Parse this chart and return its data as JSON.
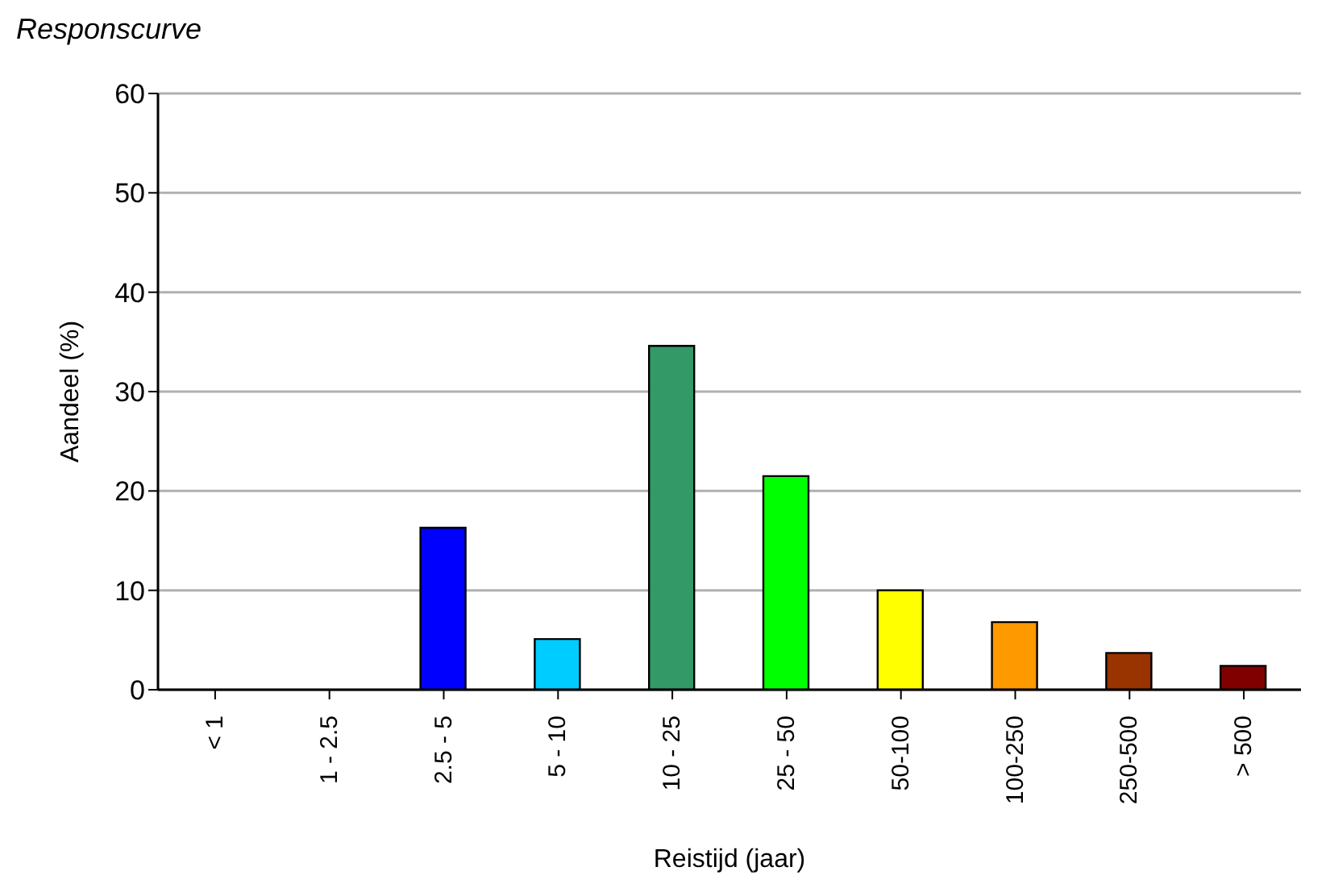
{
  "chart_data": {
    "type": "bar",
    "title": "Responscurve",
    "xlabel": "Reistijd (jaar)",
    "ylabel": "Aandeel (%)",
    "categories": [
      "< 1",
      "1 - 2.5",
      "2.5 - 5",
      "5 - 10",
      "10 - 25",
      "25 - 50",
      "50-100",
      "100-250",
      "250-500",
      "> 500"
    ],
    "values": [
      0,
      0,
      16.3,
      5.1,
      34.6,
      21.5,
      10.0,
      6.8,
      3.7,
      2.4
    ],
    "colors": [
      "#0000ff",
      "#0000ff",
      "#0000ff",
      "#00ccff",
      "#339966",
      "#00ff00",
      "#ffff00",
      "#ff9900",
      "#993300",
      "#800000"
    ],
    "ylim": [
      0,
      60
    ],
    "yticks": [
      0,
      10,
      20,
      30,
      40,
      50,
      60
    ],
    "grid": "y"
  }
}
